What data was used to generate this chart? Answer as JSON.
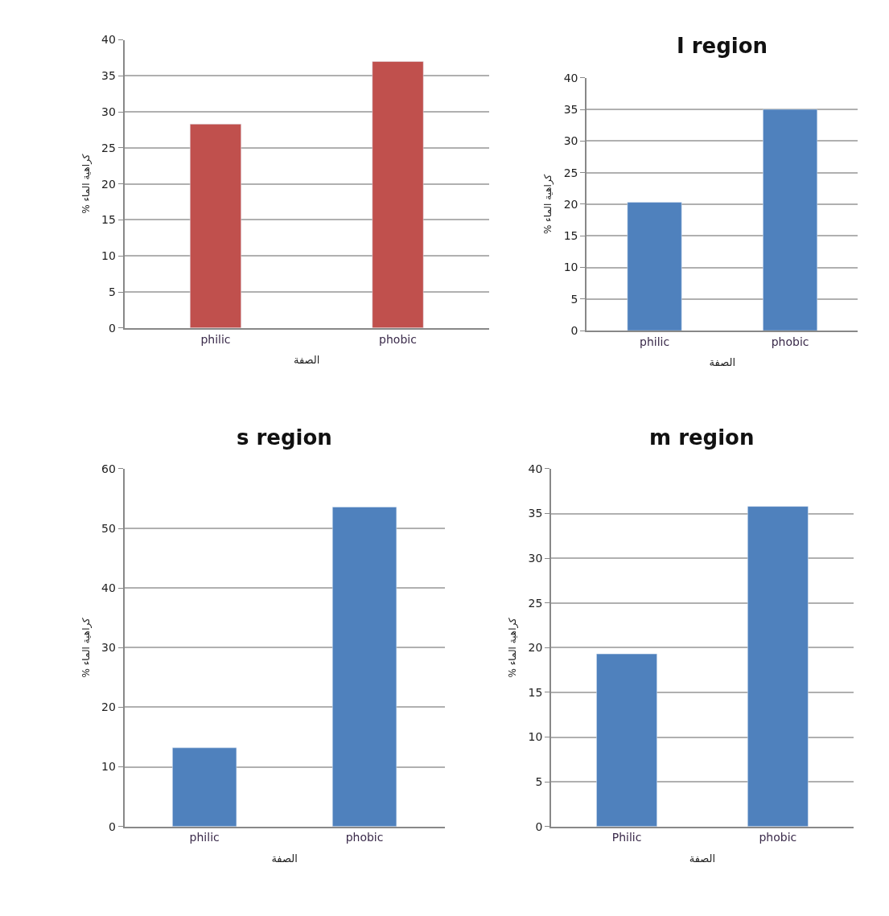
{
  "chart_data": [
    {
      "type": "bar",
      "categories": [
        "philic",
        "phobic"
      ],
      "values": [
        28.3,
        37
      ],
      "color": "#c0504d",
      "xlabel": "الصفة",
      "ylabel": "% كراهية الماء",
      "ylim": [
        0,
        40
      ],
      "yticks": [
        0,
        5,
        10,
        15,
        20,
        25,
        30,
        35,
        40
      ],
      "grid": "y"
    },
    {
      "type": "bar",
      "title": "I region",
      "categories": [
        "philic",
        "phobic"
      ],
      "values": [
        20.3,
        35
      ],
      "color": "#4f81bd",
      "xlabel": "الصفة",
      "ylabel": "% كراهية الماء",
      "ylim": [
        0,
        40
      ],
      "yticks": [
        0,
        5,
        10,
        15,
        20,
        25,
        30,
        35,
        40
      ],
      "grid": "y"
    },
    {
      "type": "bar",
      "title": "s region",
      "categories": [
        "philic",
        "phobic"
      ],
      "values": [
        13.2,
        53.6
      ],
      "color": "#4f81bd",
      "xlabel": "الصفة",
      "ylabel": "% كراهية الماء",
      "ylim": [
        0,
        60
      ],
      "yticks": [
        0,
        10,
        20,
        30,
        40,
        50,
        60
      ],
      "grid": "y"
    },
    {
      "type": "bar",
      "title": "m region",
      "categories": [
        "Philic",
        "phobic"
      ],
      "values": [
        19.3,
        35.8
      ],
      "color": "#4f81bd",
      "xlabel": "الصفة",
      "ylabel": "% كراهية الماء",
      "ylim": [
        0,
        40
      ],
      "yticks": [
        0,
        5,
        10,
        15,
        20,
        25,
        30,
        35,
        40
      ],
      "grid": "y"
    }
  ]
}
